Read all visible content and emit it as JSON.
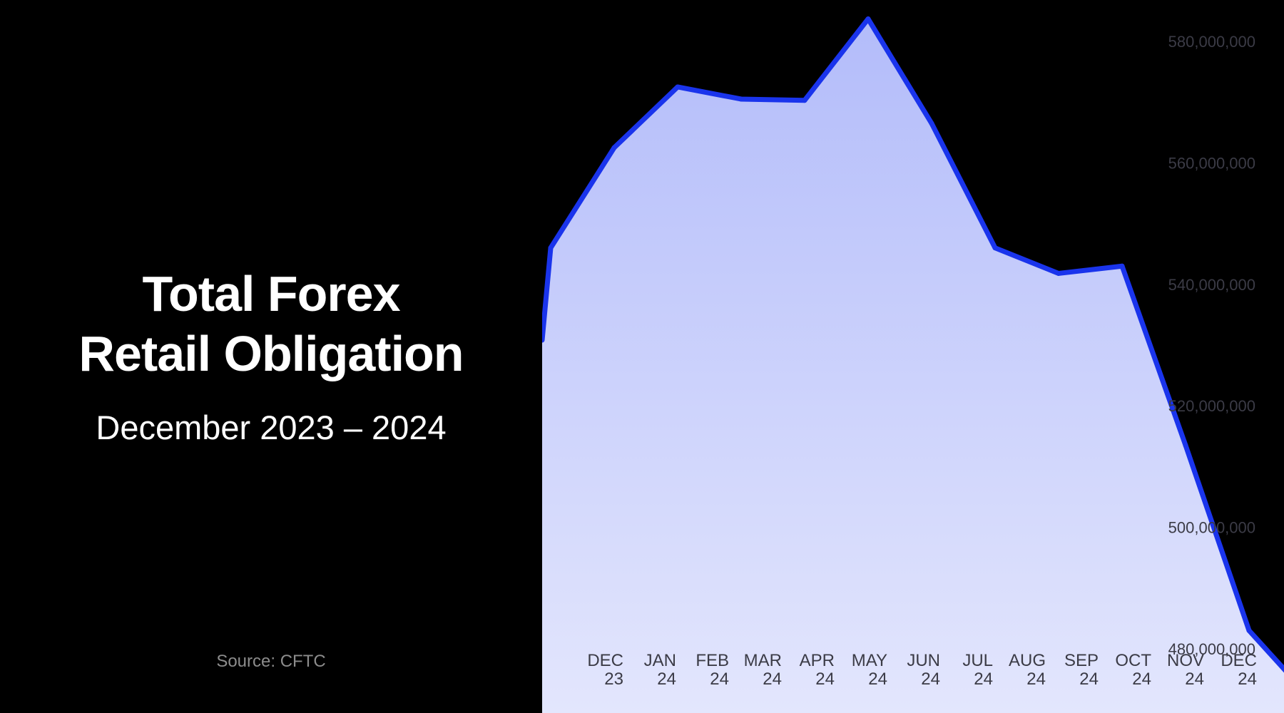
{
  "title": {
    "line1": "Total Forex",
    "line2": "Retail Obligation"
  },
  "subtitle": "December 2023 – 2024",
  "source": "Source: CFTC",
  "colors": {
    "line": "#1a34ec",
    "fill_top": "#b3bcfa",
    "fill_bottom": "#e3e6fd",
    "left_panel_bg": "#000000",
    "text": "#3b3b46"
  },
  "chart_data": {
    "type": "area",
    "categories": [
      [
        "DEC",
        "23"
      ],
      [
        "JAN",
        "24"
      ],
      [
        "FEB",
        "24"
      ],
      [
        "MAR",
        "24"
      ],
      [
        "APR",
        "24"
      ],
      [
        "MAY",
        "24"
      ],
      [
        "JUN",
        "24"
      ],
      [
        "JUL",
        "24"
      ],
      [
        "AUG",
        "24"
      ],
      [
        "SEP",
        "24"
      ],
      [
        "OCT",
        "24"
      ],
      [
        "NOV",
        "24"
      ],
      [
        "DEC",
        "24"
      ]
    ],
    "series": [
      {
        "values": [
          546000000,
          562500000,
          572500000,
          570500000,
          570300000,
          583700000,
          566500000,
          546000000,
          541800000,
          543000000,
          513500000,
          483000000,
          471500000
        ]
      }
    ],
    "yticks": [
      "480,000,000",
      "500,000,000",
      "520,000,000",
      "540,000,000",
      "560,000,000",
      "580,000,000"
    ],
    "ylim": [
      472000000,
      584000000
    ],
    "grid": false,
    "y_axis_position": "right"
  }
}
